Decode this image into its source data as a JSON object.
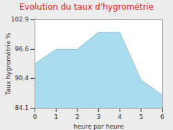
{
  "chart_data": {
    "type": "area",
    "title": "Evolution du taux d'hygrométrie",
    "x_label": "heure par heure",
    "y_label": "Taux hygrométrie %",
    "x": [
      0,
      1,
      2,
      3,
      4,
      5,
      6
    ],
    "values": [
      93.5,
      96.6,
      96.6,
      100.2,
      100.2,
      90.1,
      86.9
    ],
    "color": "#aadcf0",
    "xlim": [
      0,
      6
    ],
    "xticks": [
      0,
      1,
      2,
      3,
      4,
      5,
      6
    ],
    "ylim": [
      84.1,
      102.9
    ],
    "yticks": [
      84.1,
      90.4,
      96.6,
      102.9
    ]
  }
}
